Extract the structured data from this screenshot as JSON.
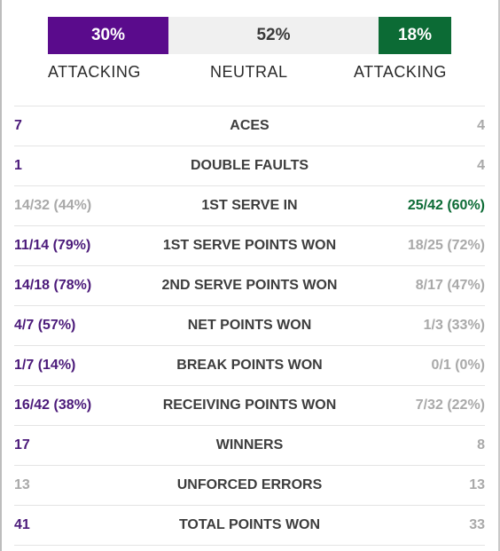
{
  "momentum": {
    "p1_pct": "30%",
    "neutral_pct": "52%",
    "p2_pct": "18%",
    "p1_label": "ATTACKING",
    "neutral_label": "NEUTRAL",
    "p2_label": "ATTACKING"
  },
  "colors": {
    "player1": "#5a0b8c",
    "player2": "#0c6b35",
    "neutral": "#f0f0f0",
    "muted_text": "#a9a9a9"
  },
  "stats": [
    {
      "label": "ACES",
      "p1": "7",
      "p2": "4"
    },
    {
      "label": "DOUBLE FAULTS",
      "p1": "1",
      "p2": "4"
    },
    {
      "label": "1ST SERVE IN",
      "p1": "14/32 (44%)",
      "p2": "25/42 (60%)"
    },
    {
      "label": "1ST SERVE POINTS WON",
      "p1": "11/14 (79%)",
      "p2": "18/25 (72%)"
    },
    {
      "label": "2ND SERVE POINTS WON",
      "p1": "14/18 (78%)",
      "p2": "8/17 (47%)"
    },
    {
      "label": "NET POINTS WON",
      "p1": "4/7 (57%)",
      "p2": "1/3 (33%)"
    },
    {
      "label": "BREAK POINTS WON",
      "p1": "1/7 (14%)",
      "p2": "0/1 (0%)"
    },
    {
      "label": "RECEIVING POINTS WON",
      "p1": "16/42 (38%)",
      "p2": "7/32 (22%)"
    },
    {
      "label": "WINNERS",
      "p1": "17",
      "p2": "8"
    },
    {
      "label": "UNFORCED ERRORS",
      "p1": "13",
      "p2": "13"
    },
    {
      "label": "TOTAL POINTS WON",
      "p1": "41",
      "p2": "33"
    }
  ]
}
